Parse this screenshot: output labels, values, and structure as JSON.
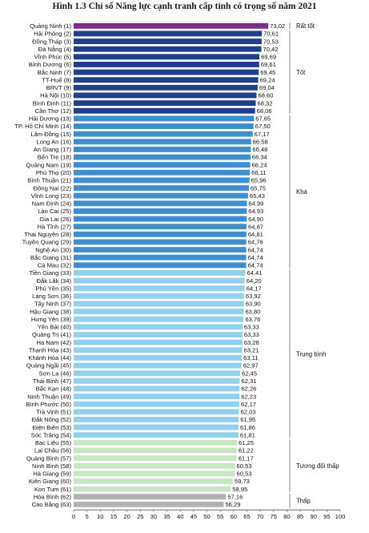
{
  "chart_data": {
    "type": "bar",
    "orientation": "horizontal",
    "title": "Hình 1.3 Chỉ số Năng lực cạnh tranh cấp tỉnh có trọng số năm 2021",
    "xlim": [
      0,
      100
    ],
    "x_ticks": [
      "0",
      "5",
      "10",
      "15",
      "20",
      "25",
      "30",
      "35",
      "40",
      "45",
      "50",
      "55",
      "60",
      "65",
      "70",
      "75",
      "80",
      "85",
      "90",
      "95",
      "100"
    ],
    "grid": false,
    "categories": [
      "Quảng Ninh (1)",
      "Hải Phòng (2)",
      "Đồng Tháp (3)",
      "Đà Nẵng (4)",
      "Vĩnh Phúc (5)",
      "Bình Dương (6)",
      "Bắc Ninh (7)",
      "TT-Huế (8)",
      "BRVT (9)",
      "Hà Nội (10)",
      "Bình Định (11)",
      "Cần Thơ (12)",
      "Hải Dương (13)",
      "TP. Hồ Chí Minh (14)",
      "Lâm Đồng (15)",
      "Long An (16)",
      "An Giang (17)",
      "Bến Tre (18)",
      "Quảng Nam (19)",
      "Phú Thọ (20)",
      "Bình Thuận (21)",
      "Đồng Nai (22)",
      "Vĩnh Long (23)",
      "Nam Định (24)",
      "Lào Cai (25)",
      "Gia Lai (26)",
      "Hà Tĩnh (27)",
      "Thái Nguyên (28)",
      "Tuyên Quang (29)",
      "Nghệ An (30)",
      "Bắc Giang (31)",
      "Cà Mau (32)",
      "Tiền Giang (33)",
      "Đắk Lắk (34)",
      "Phú Yên (35)",
      "Lạng Sơn (36)",
      "Tây Ninh (37)",
      "Hậu Giang (38)",
      "Hưng Yên (39)",
      "Yên Bái (40)",
      "Quảng Trị (41)",
      "Hà Nam (42)",
      "Thanh Hóa (43)",
      "Khánh Hòa (44)",
      "Quảng Ngãi (45)",
      "Sơn La (46)",
      "Thái Bình (47)",
      "Bắc Kạn (48)",
      "Ninh Thuận (49)",
      "Bình Phước (50)",
      "Trà Vinh (51)",
      "Đắk Nông (52)",
      "Điện Biên (53)",
      "Sóc Trăng (54)",
      "Bạc Liêu (55)",
      "Lai Châu (56)",
      "Quảng Bình (57)",
      "Ninh Bình (58)",
      "Hà Giang (59)",
      "Kiên Giang (60)",
      "Kon Tum (61)",
      "Hòa Bình (62)",
      "Cao Bằng (63)"
    ],
    "values": [
      73.02,
      70.61,
      70.53,
      70.42,
      69.69,
      69.61,
      69.45,
      69.24,
      69.04,
      68.6,
      68.32,
      68.06,
      67.65,
      67.5,
      67.17,
      66.58,
      66.48,
      66.34,
      66.24,
      66.11,
      65.96,
      65.75,
      65.43,
      64.99,
      64.93,
      64.9,
      64.87,
      64.81,
      64.76,
      64.74,
      64.74,
      64.74,
      64.41,
      64.2,
      64.17,
      63.92,
      63.9,
      63.8,
      63.76,
      63.33,
      63.33,
      63.28,
      63.21,
      63.11,
      62.97,
      62.45,
      62.31,
      62.26,
      62.23,
      62.17,
      62.03,
      61.95,
      61.86,
      61.81,
      61.25,
      61.22,
      61.17,
      60.53,
      60.53,
      59.73,
      58.95,
      57.16,
      56.29
    ],
    "value_labels": [
      "73,02",
      "70,61",
      "70,53",
      "70,42",
      "69,69",
      "69,61",
      "69,45",
      "69,24",
      "69,04",
      "68,60",
      "68,32",
      "68,06",
      "67,65",
      "67,50",
      "67,17",
      "66,58",
      "66,48",
      "66,34",
      "66,24",
      "66,11",
      "65,96",
      "65,75",
      "65,43",
      "64,99",
      "64,93",
      "64,90",
      "64,87",
      "64,81",
      "64,76",
      "64,74",
      "64,74",
      "64,74",
      "64,41",
      "64,20",
      "64,17",
      "63,92",
      "63,90",
      "63,80",
      "63,76",
      "63,33",
      "63,33",
      "63,28",
      "63,21",
      "63,11",
      "62,97",
      "62,45",
      "62,31",
      "62,26",
      "62,23",
      "62,17",
      "62,03",
      "61,95",
      "61,86",
      "61,81",
      "61,25",
      "61,22",
      "61,17",
      "60,53",
      "60,53",
      "59,73",
      "58,95",
      "57,16",
      "56,29"
    ],
    "groups": [
      {
        "name": "Rất tốt",
        "start": 0,
        "end": 0,
        "color": "#7b2d8e"
      },
      {
        "name": "Tốt",
        "start": 1,
        "end": 11,
        "color": "#1f3f8f"
      },
      {
        "name": "Khá",
        "start": 12,
        "end": 31,
        "color": "#3f8fd0"
      },
      {
        "name": "Trung bình",
        "start": 32,
        "end": 53,
        "color": "#92d0ef"
      },
      {
        "name": "Tương đối thấp",
        "start": 54,
        "end": 60,
        "color": "#c9e6c4"
      },
      {
        "name": "Thấp",
        "start": 61,
        "end": 62,
        "color": "#b3b3b3"
      }
    ]
  }
}
